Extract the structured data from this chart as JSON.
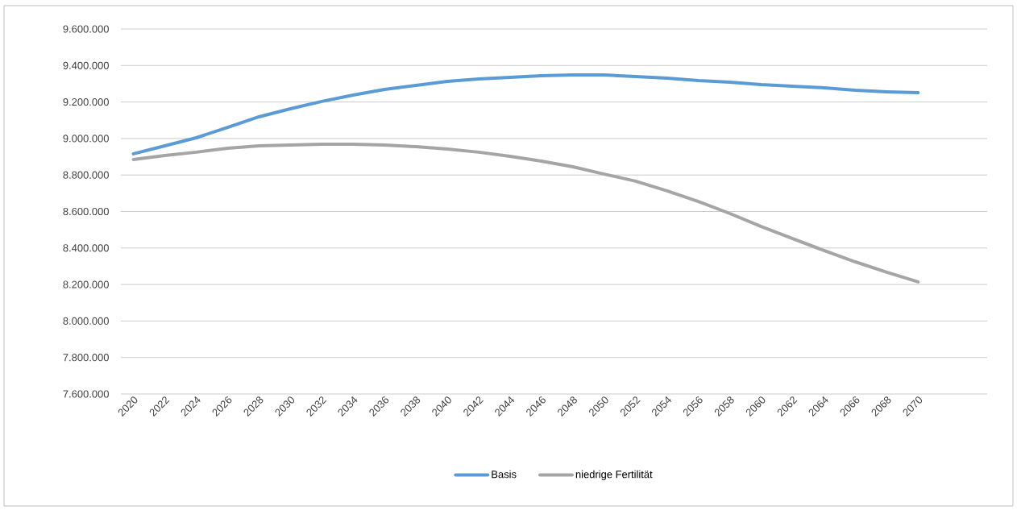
{
  "chart_data": {
    "type": "line",
    "x": [
      2020,
      2022,
      2024,
      2026,
      2028,
      2030,
      2032,
      2034,
      2036,
      2038,
      2040,
      2042,
      2044,
      2046,
      2048,
      2050,
      2052,
      2054,
      2056,
      2058,
      2060,
      2062,
      2064,
      2066,
      2068,
      2070
    ],
    "series": [
      {
        "name": "Basis",
        "color": "#5b9bd5",
        "values": [
          8916000,
          8960000,
          9004000,
          9061000,
          9119000,
          9163000,
          9203000,
          9238000,
          9269000,
          9291000,
          9313000,
          9326000,
          9335000,
          9344000,
          9348000,
          9348000,
          9340000,
          9331000,
          9317000,
          9309000,
          9295000,
          9287000,
          9278000,
          9264000,
          9256000,
          9251000
        ]
      },
      {
        "name": "niedrige Fertilität",
        "color": "#a5a5a5",
        "values": [
          8885000,
          8907000,
          8925000,
          8947000,
          8960000,
          8964000,
          8969000,
          8969000,
          8964000,
          8955000,
          8942000,
          8925000,
          8902000,
          8876000,
          8845000,
          8805000,
          8766000,
          8713000,
          8655000,
          8589000,
          8518000,
          8452000,
          8386000,
          8324000,
          8267000,
          8214000
        ]
      }
    ],
    "xlim": [
      2019.2,
      2074.4
    ],
    "xticks": [
      2020,
      2022,
      2024,
      2026,
      2028,
      2030,
      2032,
      2034,
      2036,
      2038,
      2040,
      2042,
      2044,
      2046,
      2048,
      2050,
      2052,
      2054,
      2056,
      2058,
      2060,
      2062,
      2064,
      2066,
      2068,
      2070
    ],
    "ylim": [
      7600000,
      9600000
    ],
    "yticks": [
      {
        "value": 7600000,
        "label": "7.600.000"
      },
      {
        "value": 7800000,
        "label": "7.800.000"
      },
      {
        "value": 8000000,
        "label": "8.000.000"
      },
      {
        "value": 8200000,
        "label": "8.200.000"
      },
      {
        "value": 8400000,
        "label": "8.400.000"
      },
      {
        "value": 8600000,
        "label": "8.600.000"
      },
      {
        "value": 8800000,
        "label": "8.800.000"
      },
      {
        "value": 9000000,
        "label": "9.000.000"
      },
      {
        "value": 9200000,
        "label": "9.200.000"
      },
      {
        "value": 9400000,
        "label": "9.400.000"
      },
      {
        "value": 9600000,
        "label": "9.600.000"
      }
    ],
    "grid": "y",
    "legend": "bottom",
    "marker": "none",
    "line_style": "solid"
  }
}
